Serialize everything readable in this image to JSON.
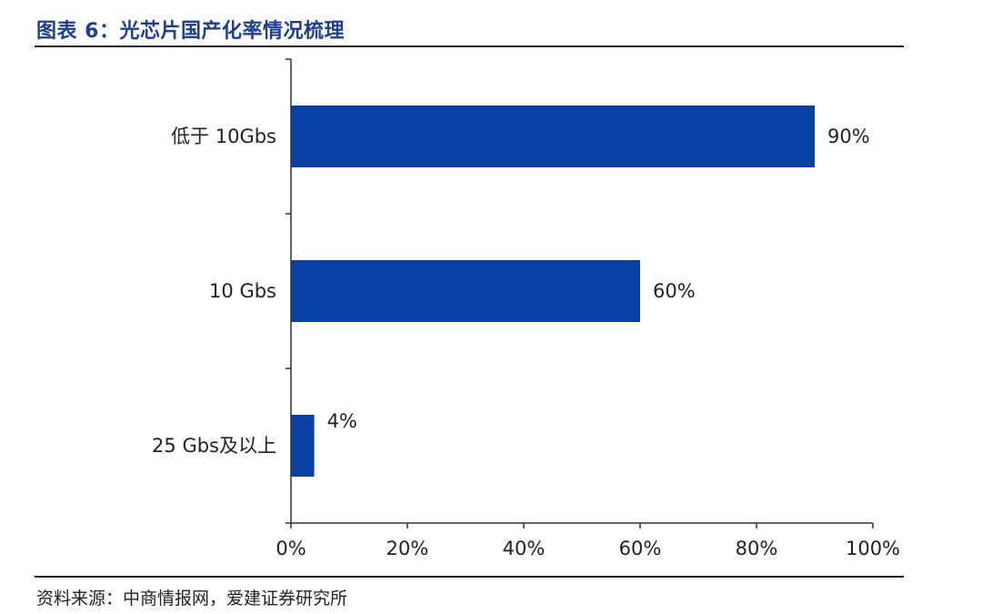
{
  "header": {
    "title": "图表 6：光芯片国产化率情况梳理"
  },
  "footer": {
    "source": "资料来源：中商情报网，爱建证券研究所"
  },
  "colors": {
    "bar": "#0a3fa3",
    "title": "#1f3e8c"
  },
  "chart_data": {
    "type": "bar",
    "orientation": "horizontal",
    "title": "图表 6：光芯片国产化率情况梳理",
    "categories": [
      "低于 10Gbs",
      "10 Gbs",
      "25 Gbs及以上"
    ],
    "values": [
      90,
      60,
      4
    ],
    "value_labels": [
      "90%",
      "60%",
      "4%"
    ],
    "xlim": [
      0,
      100
    ],
    "x_ticks": [
      0,
      20,
      40,
      60,
      80,
      100
    ],
    "x_tick_labels": [
      "0%",
      "20%",
      "40%",
      "60%",
      "80%",
      "100%"
    ],
    "xlabel": "",
    "ylabel": "",
    "grid": false,
    "legend": "none"
  }
}
